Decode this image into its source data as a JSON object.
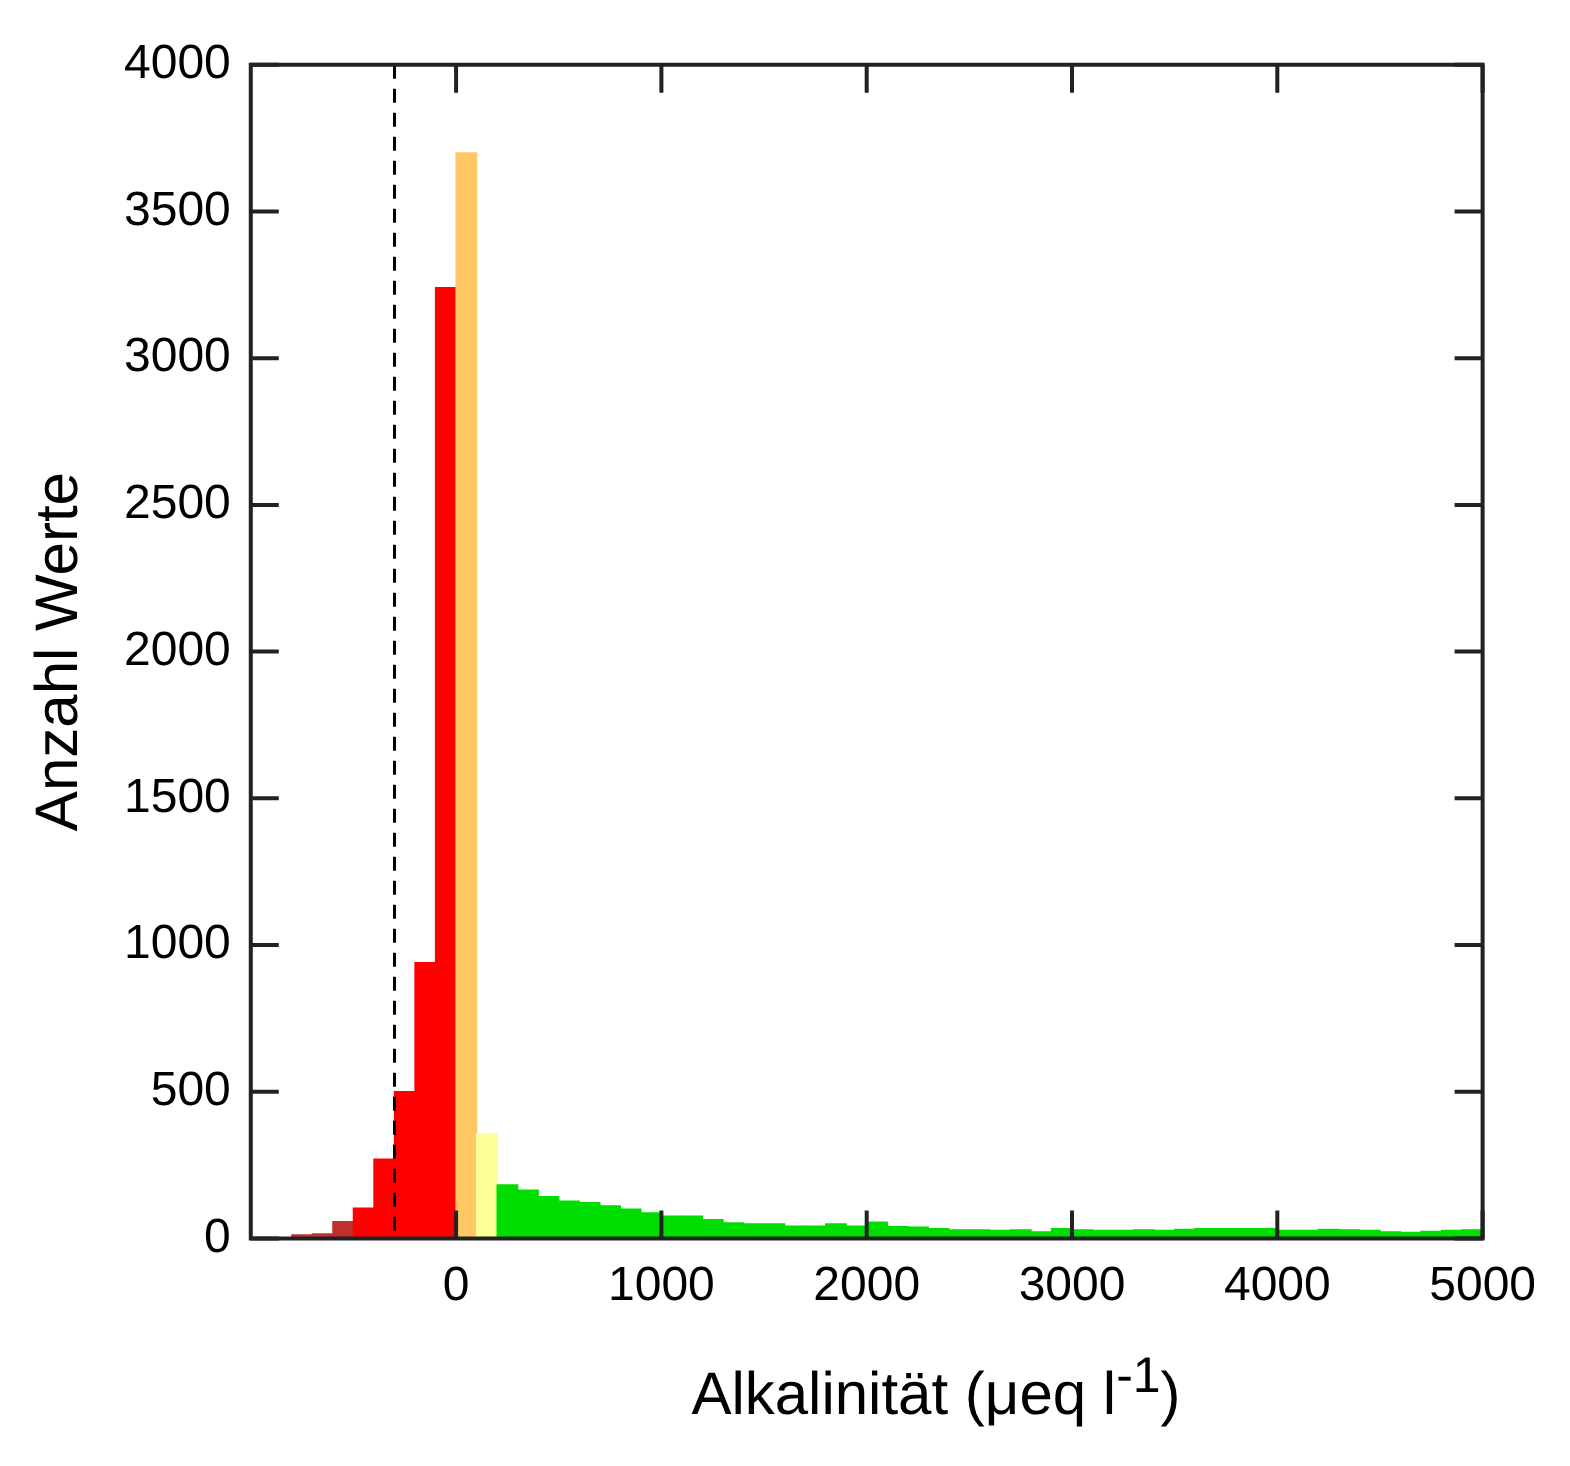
{
  "chart_data": {
    "type": "histogram",
    "xlabel": "Alkalinität (μeq l$^{-1}$)",
    "ylabel": "Anzahl Werte",
    "bins": [
      -1000,
      -900,
      -800,
      -700,
      -600,
      -500,
      -400,
      -300,
      -200,
      -100,
      0,
      100,
      200,
      300,
      400,
      500,
      600,
      700,
      800,
      900,
      1000,
      1100,
      1200,
      1300,
      1400,
      1500,
      1600,
      1700,
      1800,
      1900,
      2000,
      2100,
      2200,
      2300,
      2400,
      2500,
      2600,
      2700,
      2800,
      2900,
      3000,
      3100,
      3200,
      3300,
      3400,
      3500,
      3600,
      3700,
      3800,
      3900,
      4000,
      4100,
      4200,
      4300,
      4400,
      4500,
      4600,
      4700,
      4800,
      4900,
      5000
    ],
    "values": [
      2,
      null,
      12,
      15,
      57,
      103,
      270,
      500,
      940,
      3240,
      3700,
      357,
      182,
      164,
      142,
      127,
      122,
      111,
      100,
      87,
      76,
      76,
      64,
      53,
      49,
      49,
      42,
      42,
      49,
      42,
      55,
      40,
      38,
      33,
      29,
      29,
      27,
      29,
      22,
      33,
      29,
      27,
      27,
      29,
      27,
      31,
      33,
      33,
      33,
      33,
      27,
      27,
      31,
      29,
      27,
      22,
      20,
      24,
      27,
      29
    ],
    "colors": [
      "#c0302c",
      "#c0302c",
      "#c0302c",
      "#c0302c",
      "#c0302c",
      "#ff0000",
      "#ff0000",
      "#ff0000",
      "#ff0000",
      "#ff0000",
      "#ffc864",
      "#ffff99",
      "#00dd00",
      "#00dd00",
      "#00dd00",
      "#00dd00",
      "#00dd00",
      "#00dd00",
      "#00dd00",
      "#00dd00",
      "#00dd00",
      "#00dd00",
      "#00dd00",
      "#00dd00",
      "#00dd00",
      "#00dd00",
      "#00dd00",
      "#00dd00",
      "#00dd00",
      "#00dd00",
      "#00dd00",
      "#00dd00",
      "#00dd00",
      "#00dd00",
      "#00dd00",
      "#00dd00",
      "#00dd00",
      "#00dd00",
      "#00dd00",
      "#00dd00",
      "#00dd00",
      "#00dd00",
      "#00dd00",
      "#00dd00",
      "#00dd00",
      "#00dd00",
      "#00dd00",
      "#00dd00",
      "#00dd00",
      "#00dd00",
      "#00dd00",
      "#00dd00",
      "#00dd00",
      "#00dd00",
      "#00dd00",
      "#00dd00",
      "#00dd00",
      "#00dd00",
      "#00dd00",
      "#00dd00"
    ],
    "xlim": [
      -1000,
      5000
    ],
    "xticks": [
      0,
      1000,
      2000,
      3000,
      4000,
      5000
    ],
    "ylim": [
      0,
      4000
    ],
    "yticks": [
      0,
      500,
      1000,
      1500,
      2000,
      2500,
      3000,
      3500,
      4000
    ],
    "ref_lines": [
      {
        "axis": "x",
        "value": -300,
        "line_style": "dashed",
        "color": "#000000"
      }
    ],
    "grid": false,
    "legend": false
  }
}
